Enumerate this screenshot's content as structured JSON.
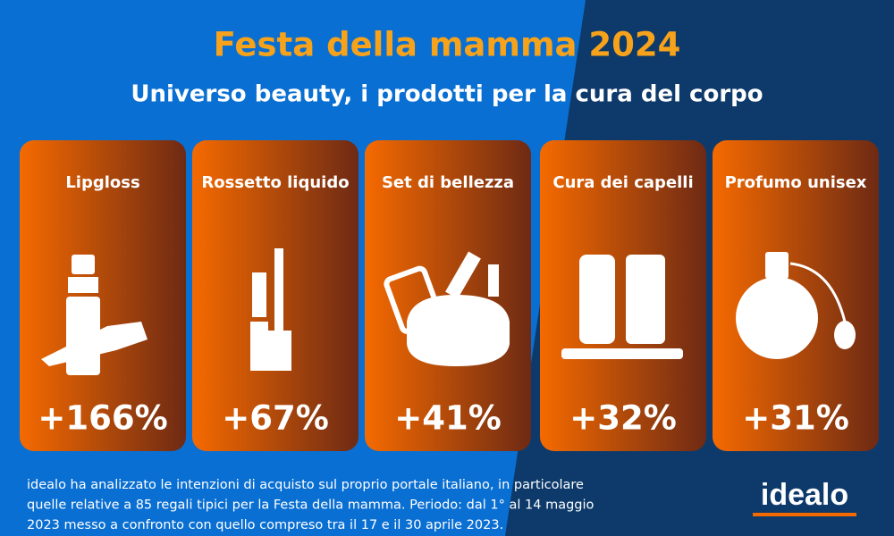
{
  "header": {
    "title": "Festa della mamma 2024",
    "subtitle": "Universo beauty, i prodotti per la cura del corpo"
  },
  "cards": [
    {
      "label": "Lipgloss",
      "value": "+166%"
    },
    {
      "label": "Rossetto liquido",
      "value": "+67%"
    },
    {
      "label": "Set di bellezza",
      "value": "+41%"
    },
    {
      "label": "Cura dei capelli",
      "value": "+32%"
    },
    {
      "label": "Profumo unisex",
      "value": "+31%"
    }
  ],
  "footer": {
    "lines": [
      "idealo ha analizzato le intenzioni di acquisto sul proprio portale italiano, in particolare",
      "quelle relative a 85 regali tipici per la Festa della mamma. Periodo: dal 1° al 14 maggio",
      "2023 messo a confronto con quello compreso tra il 17 e il 30 aprile 2023."
    ],
    "brand": "idealo"
  }
}
